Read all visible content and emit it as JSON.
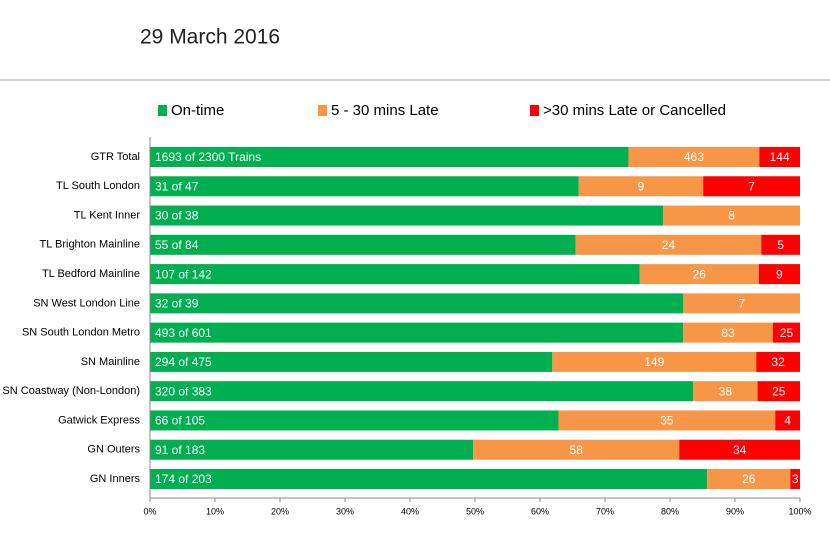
{
  "chart_data": {
    "type": "bar",
    "orientation": "horizontal",
    "stacked": "percent",
    "title": "29 March 2016",
    "categories": [
      "GTR Total",
      "TL South London",
      "TL Kent Inner",
      "TL Brighton Mainline",
      "TL Bedford Mainline",
      "SN West London Line",
      "SN South London Metro",
      "SN Mainline",
      "SN Coastway (Non-London)",
      "Gatwick Express",
      "GN Outers",
      "GN Inners"
    ],
    "series": [
      {
        "name": "On-time",
        "color": "#00b050",
        "values": [
          1693,
          31,
          30,
          55,
          107,
          32,
          493,
          294,
          320,
          66,
          91,
          174
        ],
        "value_labels": [
          "1693 of 2300 Trains",
          "31 of 47",
          "30 of 38",
          "55 of 84",
          "107 of 142",
          "32 of 39",
          "493 of 601",
          "294 of 475",
          "320 of 383",
          "66 of 105",
          "91 of 183",
          "174 of 203"
        ]
      },
      {
        "name": "5 - 30 mins Late",
        "color": "#f79646",
        "values": [
          463,
          9,
          8,
          24,
          26,
          7,
          83,
          149,
          38,
          35,
          58,
          26
        ]
      },
      {
        "name": ">30 mins Late or Cancelled",
        "color": "#ff0000",
        "values": [
          144,
          7,
          0,
          5,
          9,
          0,
          25,
          32,
          25,
          4,
          34,
          3
        ]
      }
    ],
    "xlim": [
      0,
      100
    ],
    "xticks": [
      {
        "value": 0,
        "label": "0%"
      },
      {
        "value": 10,
        "label": "10%"
      },
      {
        "value": 20,
        "label": "20%"
      },
      {
        "value": 30,
        "label": "30%"
      },
      {
        "value": 40,
        "label": "40%"
      },
      {
        "value": 50,
        "label": "50%"
      },
      {
        "value": 60,
        "label": "60%"
      },
      {
        "value": 70,
        "label": "70%"
      },
      {
        "value": 80,
        "label": "80%"
      },
      {
        "value": 90,
        "label": "90%"
      },
      {
        "value": 100,
        "label": "100%"
      }
    ],
    "legend": "top"
  }
}
